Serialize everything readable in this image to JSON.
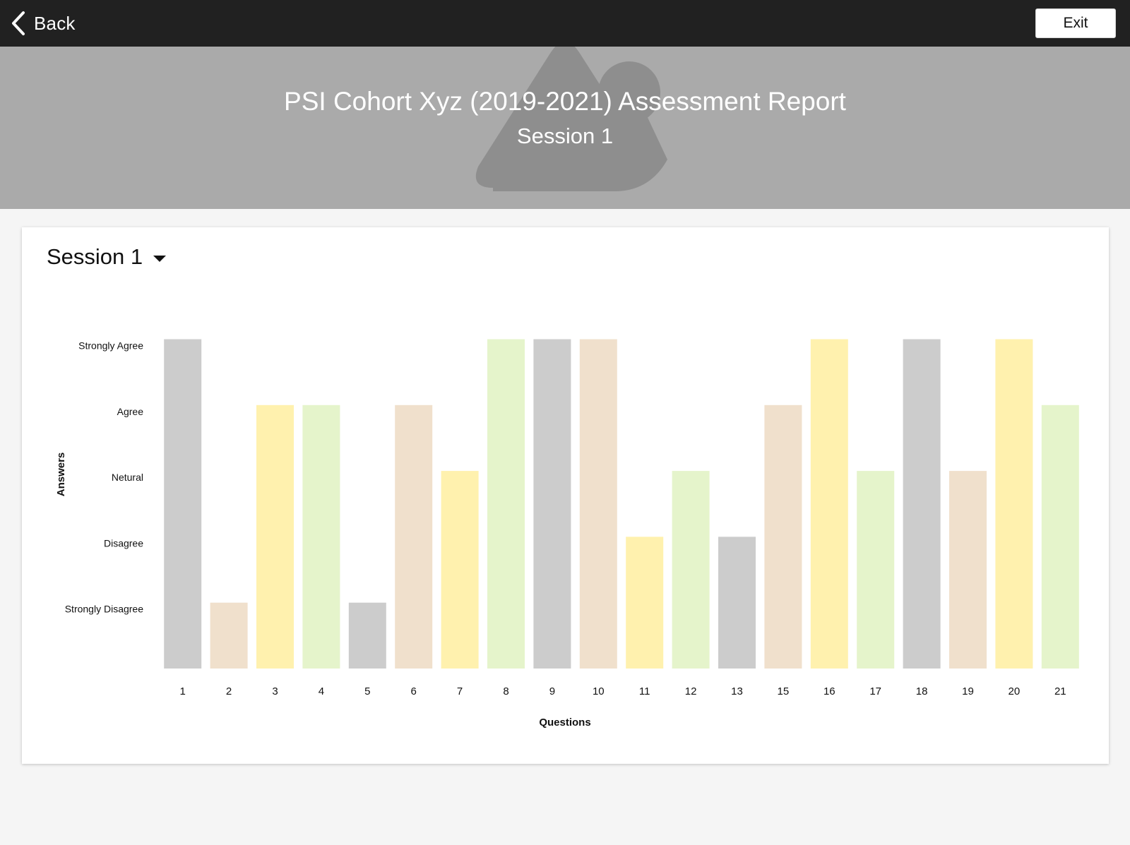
{
  "nav": {
    "back_label": "Back",
    "back_icon": "chevron-left-icon",
    "exit_label": "Exit"
  },
  "banner": {
    "title": "PSI Cohort Xyz (2019-2021) Assessment Report",
    "subtitle": "Session 1",
    "placeholder_icon": "image-placeholder-icon"
  },
  "session_selector": {
    "selected": "Session 1",
    "icon": "caret-down-icon"
  },
  "colors": {
    "topbar": "#212121",
    "banner": "#aaaaaa",
    "gray": "#cccccc",
    "tan": "#f0e0cc",
    "yellow": "#fff1ae",
    "green": "#e5f4cb"
  },
  "chart_data": {
    "type": "bar",
    "xlabel": "Questions",
    "ylabel": "Answers",
    "answer_levels": [
      "Strongly Disagree",
      "Disagree",
      "Netural",
      "Agree",
      "Strongly Agree"
    ],
    "ylim": [
      0,
      5
    ],
    "categories": [
      "1",
      "2",
      "3",
      "4",
      "5",
      "6",
      "7",
      "8",
      "9",
      "10",
      "11",
      "12",
      "13",
      "15",
      "16",
      "17",
      "18",
      "19",
      "20",
      "21"
    ],
    "values": [
      5,
      1,
      4,
      4,
      1,
      4,
      3,
      5,
      5,
      5,
      2,
      3,
      2,
      4,
      5,
      3,
      5,
      3,
      5,
      4
    ],
    "bar_colors": [
      "#cccccc",
      "#f0e0cc",
      "#fff1ae",
      "#e5f4cb",
      "#cccccc",
      "#f0e0cc",
      "#fff1ae",
      "#e5f4cb",
      "#cccccc",
      "#f0e0cc",
      "#fff1ae",
      "#e5f4cb",
      "#cccccc",
      "#f0e0cc",
      "#fff1ae",
      "#e5f4cb",
      "#cccccc",
      "#f0e0cc",
      "#fff1ae",
      "#e5f4cb"
    ],
    "grid": false,
    "legend": "none"
  }
}
